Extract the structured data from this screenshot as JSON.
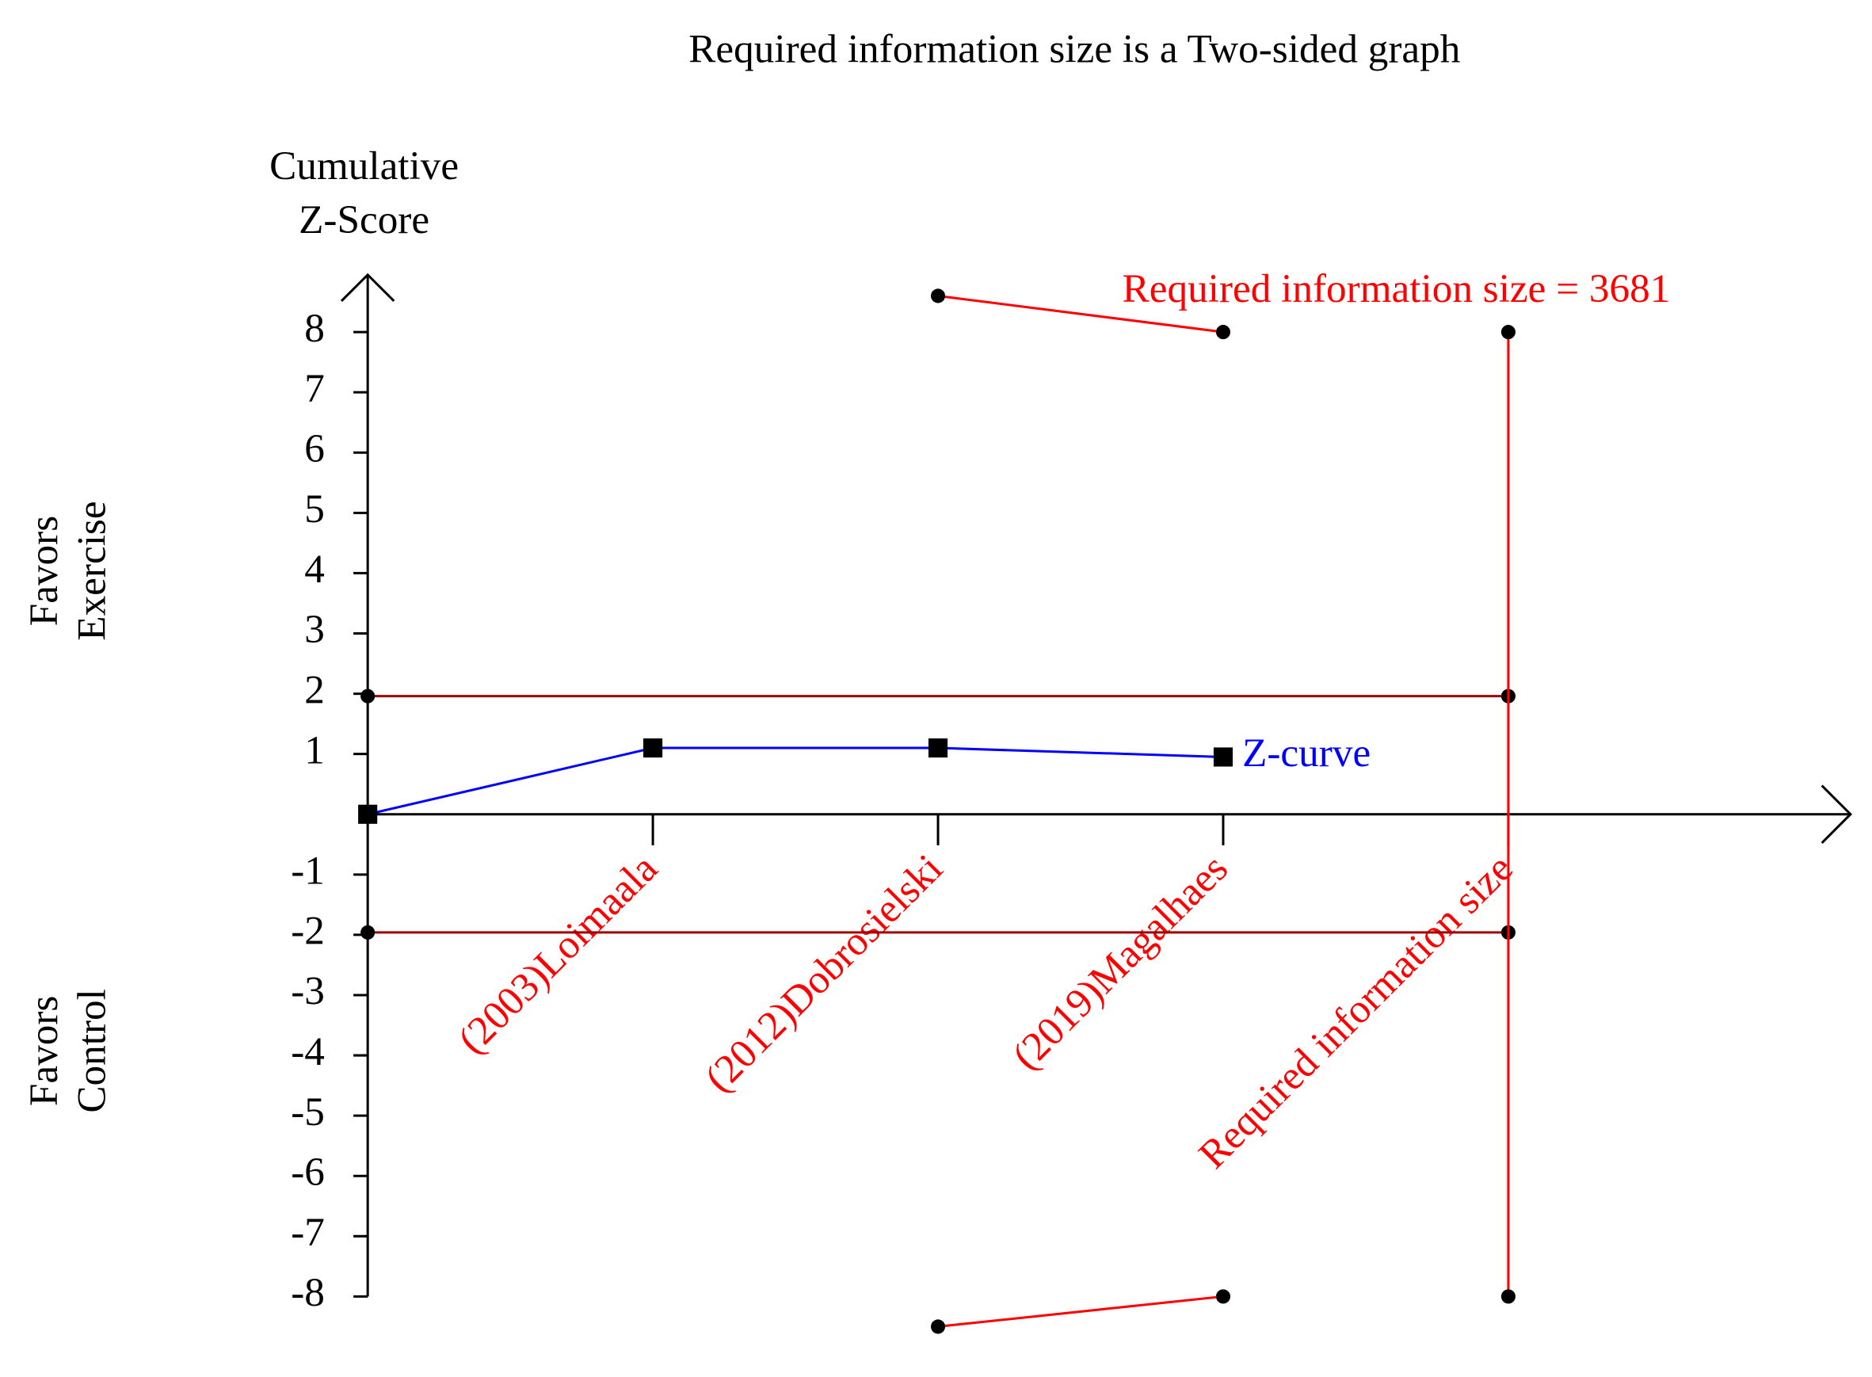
{
  "chart_data": {
    "type": "line",
    "title": "Required information size is a Two-sided graph",
    "y_label": [
      "Cumulative",
      "Z-Score"
    ],
    "side_labels": [
      [
        "Favors",
        "Exercise"
      ],
      [
        "Favors",
        "Control"
      ]
    ],
    "annotation": "Required information size = 3681",
    "annotation_color": "#ff0000",
    "xlim": [
      0,
      5.2
    ],
    "ylim": [
      -8.6,
      8.95
    ],
    "xticks": [
      1,
      2,
      3,
      4
    ],
    "categories": [
      "(2003)Loimaala",
      "(2012)Dobrosielski",
      "(2019)Magalhaes",
      "Required information size"
    ],
    "category_color": "#ff0000",
    "yticks": [
      -8,
      -7,
      -6,
      -5,
      -4,
      -3,
      -2,
      -1,
      1,
      2,
      3,
      4,
      5,
      6,
      7,
      8
    ],
    "series": [
      {
        "name": "Z-curve",
        "color": "#0000ff",
        "marker": "square",
        "x": [
          0,
          1,
          2,
          3
        ],
        "values": [
          0,
          1.1,
          1.1,
          0.95
        ]
      },
      {
        "color": "#a00000",
        "marker": "dot",
        "x": [
          0,
          4
        ],
        "values": [
          1.96,
          1.96
        ]
      },
      {
        "color": "#a00000",
        "marker": "dot",
        "x": [
          0,
          4
        ],
        "values": [
          -1.96,
          -1.96
        ]
      },
      {
        "color": "#ff0000",
        "marker": "dot",
        "x": [
          2,
          3
        ],
        "values": [
          8.6,
          8
        ]
      },
      {
        "color": "#ff0000",
        "marker": "dot",
        "x": [
          2,
          3
        ],
        "values": [
          -8.5,
          -8
        ]
      },
      {
        "color": "#ff0000",
        "marker": "dot",
        "x": [
          4,
          4
        ],
        "values": [
          8,
          -8
        ]
      }
    ]
  }
}
